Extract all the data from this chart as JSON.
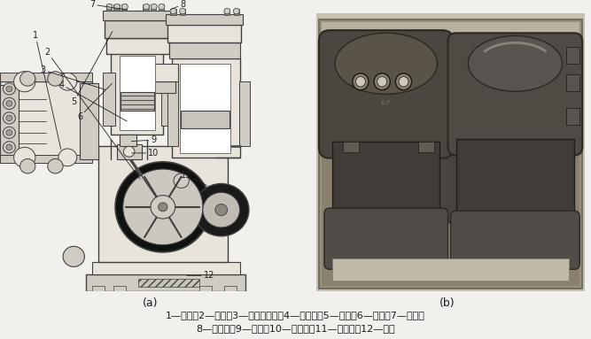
{
  "caption_a": "(a)",
  "caption_b": "(b)",
  "legend_line1": "1—连杆；2—曲轴；3—中间冷却器；4—活塞杆；5—气阀；6—气缸；7—活塞；",
  "legend_line2": "8—活塞环；9—填料；10—十字头；11—平衡重；12—机身",
  "bg_color": "#f2f0ed",
  "fig_width": 6.67,
  "fig_height": 3.83,
  "dpi": 100,
  "outline": "#404040",
  "fill_light": "#e8e4dc",
  "fill_mid": "#d0ccc4",
  "fill_dark": "#888880",
  "fill_black": "#111111",
  "white": "#ffffff",
  "label_color": "#222222",
  "label_fs": 7.0,
  "photo_bg": "#b0a898",
  "photo_dark": "#3a3630",
  "photo_mid": "#5a5448",
  "photo_light": "#7a7060"
}
